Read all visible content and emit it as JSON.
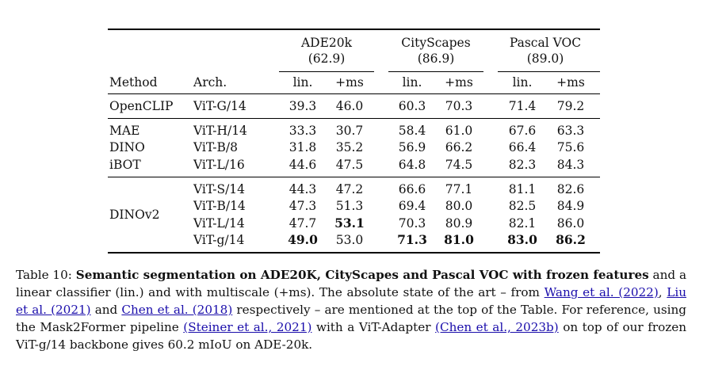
{
  "table": {
    "groups": [
      {
        "name": "ADE20k",
        "sota": "(62.9)"
      },
      {
        "name": "CityScapes",
        "sota": "(86.9)"
      },
      {
        "name": "Pascal VOC",
        "sota": "(89.0)"
      }
    ],
    "header": {
      "method": "Method",
      "arch": "Arch.",
      "lin": "lin.",
      "ms": "+ms"
    },
    "rows": [
      {
        "method": "OpenCLIP",
        "arch": "ViT-G/14",
        "vals": [
          "39.3",
          "46.0",
          "60.3",
          "70.3",
          "71.4",
          "79.2"
        ]
      },
      {
        "method": "MAE",
        "arch": "ViT-H/14",
        "vals": [
          "33.3",
          "30.7",
          "58.4",
          "61.0",
          "67.6",
          "63.3"
        ]
      },
      {
        "method": "DINO",
        "arch": "ViT-B/8",
        "vals": [
          "31.8",
          "35.2",
          "56.9",
          "66.2",
          "66.4",
          "75.6"
        ]
      },
      {
        "method": "iBOT",
        "arch": "ViT-L/16",
        "vals": [
          "44.6",
          "47.5",
          "64.8",
          "74.5",
          "82.3",
          "84.3"
        ]
      },
      {
        "method": "",
        "arch": "ViT-S/14",
        "vals": [
          "44.3",
          "47.2",
          "66.6",
          "77.1",
          "81.1",
          "82.6"
        ]
      },
      {
        "method": "",
        "arch": "ViT-B/14",
        "vals": [
          "47.3",
          "51.3",
          "69.4",
          "80.0",
          "82.5",
          "84.9"
        ]
      },
      {
        "method": "",
        "arch": "ViT-L/14",
        "vals": [
          "47.7",
          "53.1",
          "70.3",
          "80.9",
          "82.1",
          "86.0"
        ]
      },
      {
        "method": "",
        "arch": "ViT-g/14",
        "vals": [
          "49.0",
          "53.0",
          "71.3",
          "81.0",
          "83.0",
          "86.2"
        ]
      }
    ],
    "dinov2_label": "DINOv2"
  },
  "caption": {
    "prefix": "Table 10: ",
    "title": "Semantic segmentation on ADE20K, CityScapes and Pascal VOC with frozen features",
    "t1": " and a linear classifier (lin.) and with multiscale (+ms). The absolute state of the art – from ",
    "l1": "Wang et al. (2022)",
    "t2": ", ",
    "l2": "Liu et al. (2021)",
    "t3": " and ",
    "l3": "Chen et al. (2018)",
    "t4": " respectively – are mentioned at the top of the Table. For reference, using the Mask2Former pipeline ",
    "l4": "(Steiner et al., 2021)",
    "t5": " with a ViT-Adapter ",
    "l5": "(Chen et al., 2023b)",
    "t6": " on top of our frozen ViT-g/14 backbone gives 60.2 mIoU on ADE-20k."
  }
}
